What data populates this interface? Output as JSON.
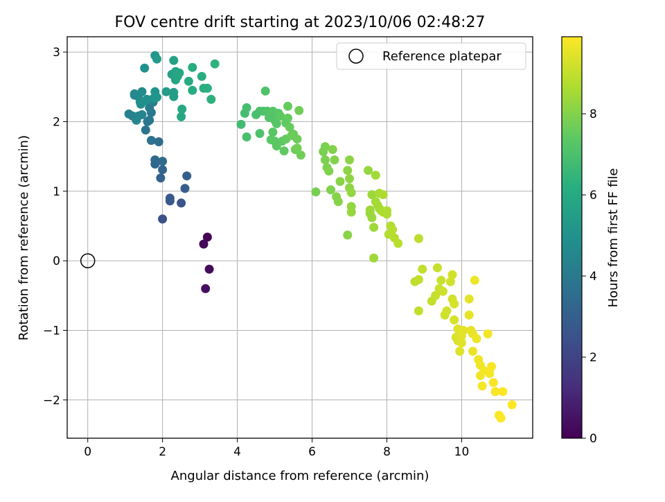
{
  "chart_data": {
    "type": "scatter",
    "title": "FOV centre drift starting at 2023/10/06 02:48:27",
    "xlabel": "Angular distance from reference (arcmin)",
    "ylabel": "Rotation from reference (arcmin)",
    "xlim": [
      -0.55,
      11.9
    ],
    "ylim": [
      -2.55,
      3.22
    ],
    "xticks": [
      0,
      2,
      4,
      6,
      8,
      10
    ],
    "yticks": [
      -2,
      -1,
      0,
      1,
      2,
      3
    ],
    "xtick_labels": [
      "0",
      "2",
      "4",
      "6",
      "8",
      "10"
    ],
    "ytick_labels": [
      "−2",
      "−1",
      "0",
      "1",
      "2",
      "3"
    ],
    "grid": true,
    "colormap": "viridis",
    "colorbar": {
      "label": "Hours from first FF file",
      "range": [
        0,
        9.9
      ],
      "ticks": [
        0,
        2,
        4,
        6,
        8
      ],
      "tick_labels": [
        "0",
        "2",
        "4",
        "6",
        "8"
      ]
    },
    "legend": {
      "position": "top-right",
      "entries": [
        "Reference platepar"
      ]
    },
    "reference_point": {
      "x": 0,
      "y": 0,
      "marker": "open-circle"
    },
    "points": [
      [
        3.2,
        0.34,
        0.1
      ],
      [
        3.1,
        0.24,
        0.2
      ],
      [
        3.25,
        -0.12,
        0.3
      ],
      [
        3.15,
        -0.4,
        0.4
      ],
      [
        2.0,
        0.6,
        2.4
      ],
      [
        2.5,
        0.83,
        2.6
      ],
      [
        2.2,
        0.86,
        2.7
      ],
      [
        2.2,
        0.9,
        2.8
      ],
      [
        2.6,
        1.04,
        2.9
      ],
      [
        2.65,
        1.22,
        3.0
      ],
      [
        1.95,
        1.19,
        3.1
      ],
      [
        2.0,
        1.31,
        3.2
      ],
      [
        1.8,
        1.39,
        3.3
      ],
      [
        1.8,
        1.45,
        3.35
      ],
      [
        2.0,
        1.43,
        3.4
      ],
      [
        1.9,
        1.71,
        3.5
      ],
      [
        1.7,
        1.73,
        3.7
      ],
      [
        1.55,
        1.88,
        3.8
      ],
      [
        1.6,
        2.0,
        3.9
      ],
      [
        1.65,
        2.02,
        3.95
      ],
      [
        1.7,
        2.13,
        4.0
      ],
      [
        1.65,
        2.2,
        4.1
      ],
      [
        1.75,
        2.28,
        4.2
      ],
      [
        1.1,
        2.11,
        4.3
      ],
      [
        1.2,
        2.08,
        4.35
      ],
      [
        1.35,
        2.08,
        4.4
      ],
      [
        1.45,
        2.1,
        4.45
      ],
      [
        1.3,
        2.02,
        4.5
      ],
      [
        1.25,
        2.38,
        4.55
      ],
      [
        1.25,
        2.4,
        4.6
      ],
      [
        1.35,
        2.36,
        4.65
      ],
      [
        1.45,
        2.43,
        4.7
      ],
      [
        1.55,
        2.3,
        4.75
      ],
      [
        1.42,
        2.25,
        4.8
      ],
      [
        1.4,
        2.28,
        4.85
      ],
      [
        1.58,
        2.32,
        4.9
      ],
      [
        1.52,
        2.77,
        4.95
      ],
      [
        1.75,
        2.33,
        5.0
      ],
      [
        1.8,
        2.43,
        5.1
      ],
      [
        1.85,
        2.35,
        5.15
      ],
      [
        1.8,
        2.95,
        5.2
      ],
      [
        1.85,
        2.9,
        5.3
      ],
      [
        2.1,
        2.43,
        5.4
      ],
      [
        2.3,
        2.36,
        5.5
      ],
      [
        2.3,
        2.42,
        5.55
      ],
      [
        2.25,
        2.68,
        5.6
      ],
      [
        2.3,
        2.88,
        5.65
      ],
      [
        2.35,
        2.72,
        5.7
      ],
      [
        2.35,
        2.6,
        5.75
      ],
      [
        2.4,
        2.65,
        5.8
      ],
      [
        2.45,
        2.7,
        5.85
      ],
      [
        2.5,
        2.07,
        5.9
      ],
      [
        2.52,
        2.18,
        5.95
      ],
      [
        2.7,
        2.58,
        6.0
      ],
      [
        2.8,
        2.45,
        6.05
      ],
      [
        2.8,
        2.78,
        6.1
      ],
      [
        3.05,
        2.65,
        6.15
      ],
      [
        3.1,
        2.48,
        6.2
      ],
      [
        3.2,
        2.48,
        6.25
      ],
      [
        3.3,
        2.32,
        6.3
      ],
      [
        3.4,
        2.83,
        6.35
      ],
      [
        4.1,
        1.96,
        6.8
      ],
      [
        4.2,
        2.12,
        6.85
      ],
      [
        4.25,
        2.2,
        6.9
      ],
      [
        4.25,
        1.78,
        6.95
      ],
      [
        4.5,
        2.1,
        7.0
      ],
      [
        4.6,
        2.15,
        7.0
      ],
      [
        4.6,
        1.83,
        7.05
      ],
      [
        4.7,
        2.15,
        7.05
      ],
      [
        4.75,
        2.44,
        7.1
      ],
      [
        4.8,
        2.15,
        7.1
      ],
      [
        4.85,
        2.06,
        7.15
      ],
      [
        4.9,
        2.1,
        7.15
      ],
      [
        4.95,
        2.15,
        7.2
      ],
      [
        5.0,
        2.02,
        7.2
      ],
      [
        5.05,
        1.97,
        7.25
      ],
      [
        5.1,
        2.12,
        7.25
      ],
      [
        4.95,
        1.85,
        7.3
      ],
      [
        4.9,
        1.74,
        7.3
      ],
      [
        5.0,
        1.72,
        7.35
      ],
      [
        5.05,
        1.65,
        7.35
      ],
      [
        5.15,
        2.08,
        7.4
      ],
      [
        5.2,
        1.72,
        7.4
      ],
      [
        5.25,
        1.58,
        7.45
      ],
      [
        5.3,
        1.98,
        7.45
      ],
      [
        5.35,
        2.05,
        7.5
      ],
      [
        5.3,
        1.75,
        7.5
      ],
      [
        5.35,
        2.22,
        7.55
      ],
      [
        5.4,
        1.92,
        7.55
      ],
      [
        5.45,
        1.8,
        7.6
      ],
      [
        5.5,
        1.82,
        7.6
      ],
      [
        5.55,
        1.6,
        7.65
      ],
      [
        5.6,
        1.75,
        7.65
      ],
      [
        5.65,
        2.16,
        7.7
      ],
      [
        5.7,
        1.52,
        7.7
      ],
      [
        5.6,
        1.62,
        7.75
      ],
      [
        6.1,
        0.99,
        7.8
      ],
      [
        6.3,
        1.57,
        7.85
      ],
      [
        6.35,
        1.64,
        7.85
      ],
      [
        6.35,
        1.45,
        7.9
      ],
      [
        6.4,
        1.34,
        7.9
      ],
      [
        6.45,
        1.29,
        7.95
      ],
      [
        6.5,
        1.02,
        7.95
      ],
      [
        6.55,
        1.6,
        8.0
      ],
      [
        6.6,
        1.45,
        8.0
      ],
      [
        6.65,
        0.92,
        8.05
      ],
      [
        6.7,
        0.85,
        8.05
      ],
      [
        6.75,
        1.14,
        8.1
      ],
      [
        6.95,
        0.37,
        8.1
      ],
      [
        6.95,
        1.3,
        8.15
      ],
      [
        7.0,
        1.45,
        8.15
      ],
      [
        7.0,
        1.18,
        8.2
      ],
      [
        7.0,
        1.05,
        8.2
      ],
      [
        7.05,
        0.98,
        8.25
      ],
      [
        7.05,
        0.78,
        8.25
      ],
      [
        7.05,
        0.7,
        8.3
      ],
      [
        7.5,
        1.3,
        8.3
      ],
      [
        7.55,
        0.68,
        8.35
      ],
      [
        7.6,
        0.62,
        8.35
      ],
      [
        7.55,
        0.73,
        8.4
      ],
      [
        7.6,
        0.95,
        8.4
      ],
      [
        7.65,
        0.48,
        8.45
      ],
      [
        7.65,
        0.04,
        8.45
      ],
      [
        7.7,
        1.23,
        8.5
      ],
      [
        7.7,
        0.85,
        8.5
      ],
      [
        7.75,
        0.8,
        8.55
      ],
      [
        7.8,
        0.75,
        8.55
      ],
      [
        7.8,
        0.97,
        8.6
      ],
      [
        7.85,
        0.72,
        8.6
      ],
      [
        7.9,
        0.95,
        8.65
      ],
      [
        7.9,
        0.7,
        8.65
      ],
      [
        8.0,
        0.67,
        8.7
      ],
      [
        8.0,
        0.72,
        8.7
      ],
      [
        8.05,
        0.38,
        8.75
      ],
      [
        8.1,
        0.5,
        8.75
      ],
      [
        8.15,
        0.45,
        8.8
      ],
      [
        8.2,
        0.33,
        8.8
      ],
      [
        8.3,
        0.25,
        8.85
      ],
      [
        8.75,
        -0.3,
        8.9
      ],
      [
        8.85,
        0.32,
        8.9
      ],
      [
        8.85,
        -0.27,
        8.95
      ],
      [
        8.85,
        -0.72,
        8.95
      ],
      [
        8.95,
        -0.12,
        9.0
      ],
      [
        9.2,
        -0.58,
        9.0
      ],
      [
        9.3,
        -0.5,
        9.05
      ],
      [
        9.35,
        -0.1,
        9.05
      ],
      [
        9.4,
        -0.4,
        9.1
      ],
      [
        9.45,
        -0.28,
        9.1
      ],
      [
        9.5,
        -0.44,
        9.15
      ],
      [
        9.55,
        -0.78,
        9.15
      ],
      [
        9.6,
        -0.72,
        9.2
      ],
      [
        9.7,
        -0.3,
        9.2
      ],
      [
        9.75,
        -0.2,
        9.25
      ],
      [
        9.75,
        -0.55,
        9.25
      ],
      [
        9.8,
        -0.62,
        9.3
      ],
      [
        9.8,
        -0.85,
        9.3
      ],
      [
        9.85,
        -1.1,
        9.35
      ],
      [
        9.9,
        -1.15,
        9.35
      ],
      [
        9.9,
        -0.98,
        9.4
      ],
      [
        9.95,
        -1.3,
        9.4
      ],
      [
        10.0,
        -1.18,
        9.45
      ],
      [
        10.0,
        -1.08,
        9.45
      ],
      [
        10.05,
        -1.0,
        9.5
      ],
      [
        10.2,
        -0.55,
        9.5
      ],
      [
        10.2,
        -0.78,
        9.55
      ],
      [
        10.25,
        -1.0,
        9.55
      ],
      [
        10.3,
        -1.05,
        9.6
      ],
      [
        10.3,
        -1.3,
        9.6
      ],
      [
        10.35,
        -0.28,
        9.65
      ],
      [
        10.4,
        -1.12,
        9.65
      ],
      [
        10.45,
        -1.42,
        9.7
      ],
      [
        10.5,
        -1.5,
        9.7
      ],
      [
        10.5,
        -1.65,
        9.72
      ],
      [
        10.55,
        -1.8,
        9.74
      ],
      [
        10.6,
        -1.58,
        9.75
      ],
      [
        10.7,
        -1.05,
        9.76
      ],
      [
        10.75,
        -1.62,
        9.78
      ],
      [
        10.8,
        -1.52,
        9.8
      ],
      [
        10.85,
        -1.75,
        9.82
      ],
      [
        10.9,
        -1.88,
        9.84
      ],
      [
        11.0,
        -2.22,
        9.86
      ],
      [
        11.05,
        -2.26,
        9.87
      ],
      [
        11.1,
        -1.88,
        9.88
      ],
      [
        11.35,
        -2.07,
        9.9
      ]
    ]
  }
}
